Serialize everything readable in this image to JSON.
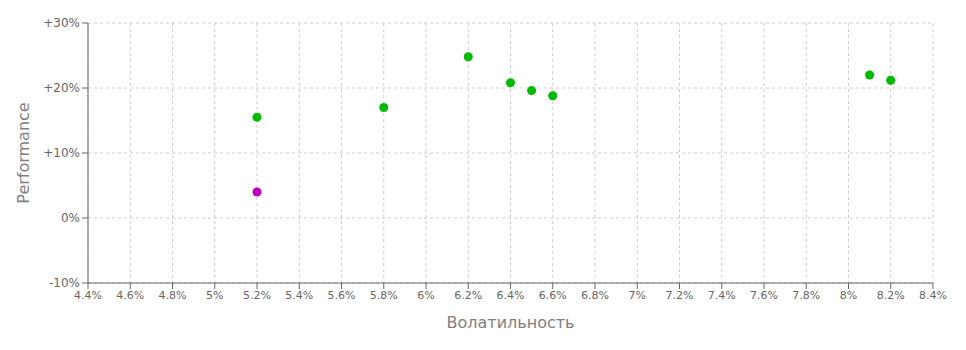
{
  "chart_data": {
    "type": "scatter",
    "xlabel": "Волатильность",
    "ylabel": "Performance",
    "xlim": [
      0.044,
      0.084
    ],
    "ylim": [
      -0.1,
      0.3
    ],
    "xticks": [
      {
        "value": 0.044,
        "label": "4.4%"
      },
      {
        "value": 0.046,
        "label": "4.6%"
      },
      {
        "value": 0.048,
        "label": "4.8%"
      },
      {
        "value": 0.05,
        "label": "5%"
      },
      {
        "value": 0.052,
        "label": "5.2%"
      },
      {
        "value": 0.054,
        "label": "5.4%"
      },
      {
        "value": 0.056,
        "label": "5.6%"
      },
      {
        "value": 0.058,
        "label": "5.8%"
      },
      {
        "value": 0.06,
        "label": "6%"
      },
      {
        "value": 0.062,
        "label": "6.2%"
      },
      {
        "value": 0.064,
        "label": "6.4%"
      },
      {
        "value": 0.066,
        "label": "6.6%"
      },
      {
        "value": 0.068,
        "label": "6.8%"
      },
      {
        "value": 0.07,
        "label": "7%"
      },
      {
        "value": 0.072,
        "label": "7.2%"
      },
      {
        "value": 0.074,
        "label": "7.4%"
      },
      {
        "value": 0.076,
        "label": "7.6%"
      },
      {
        "value": 0.078,
        "label": "7.8%"
      },
      {
        "value": 0.08,
        "label": "8%"
      },
      {
        "value": 0.082,
        "label": "8.2%"
      },
      {
        "value": 0.084,
        "label": "8.4%"
      }
    ],
    "yticks": [
      {
        "value": -0.1,
        "label": "-10%"
      },
      {
        "value": 0.0,
        "label": "0%"
      },
      {
        "value": 0.1,
        "label": "+10%"
      },
      {
        "value": 0.2,
        "label": "+20%"
      },
      {
        "value": 0.3,
        "label": "+30%"
      }
    ],
    "grid": true,
    "series": [
      {
        "color": "#00bb00",
        "x": [
          0.052,
          0.058,
          0.062,
          0.064,
          0.065,
          0.066,
          0.081,
          0.082
        ],
        "values": [
          0.155,
          0.17,
          0.248,
          0.208,
          0.196,
          0.188,
          0.22,
          0.212
        ]
      },
      {
        "color": "#bb00bb",
        "x": [
          0.052
        ],
        "values": [
          0.04
        ]
      }
    ]
  }
}
